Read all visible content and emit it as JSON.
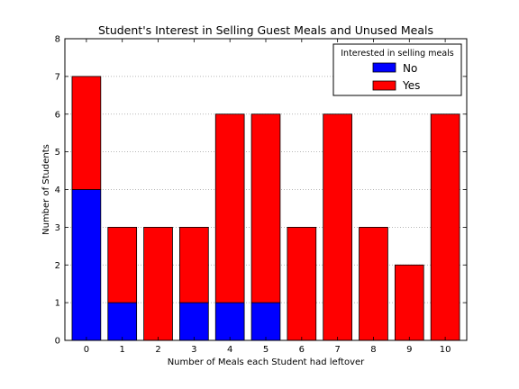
{
  "chart_data": {
    "type": "bar",
    "stacked": true,
    "title": "Student's Interest in Selling Guest Meals and Unused Meals",
    "xlabel": "Number of Meals each Student had leftover",
    "ylabel": "Number of Students",
    "categories": [
      "0",
      "1",
      "2",
      "3",
      "4",
      "5",
      "6",
      "7",
      "8",
      "9",
      "10"
    ],
    "ylim": [
      0,
      8
    ],
    "yticks": [
      "0",
      "1",
      "2",
      "3",
      "4",
      "5",
      "6",
      "7",
      "8"
    ],
    "grid": "horizontal dotted",
    "legend": {
      "title": "Interested in selling meals",
      "placement": "top-right"
    },
    "series": [
      {
        "name": "No",
        "color": "#0000ff",
        "values": [
          4,
          1,
          0,
          1,
          1,
          1,
          0,
          0,
          0,
          0,
          0
        ]
      },
      {
        "name": "Yes",
        "color": "#ff0000",
        "values": [
          3,
          2,
          3,
          2,
          5,
          5,
          3,
          6,
          3,
          2,
          6
        ]
      }
    ]
  }
}
